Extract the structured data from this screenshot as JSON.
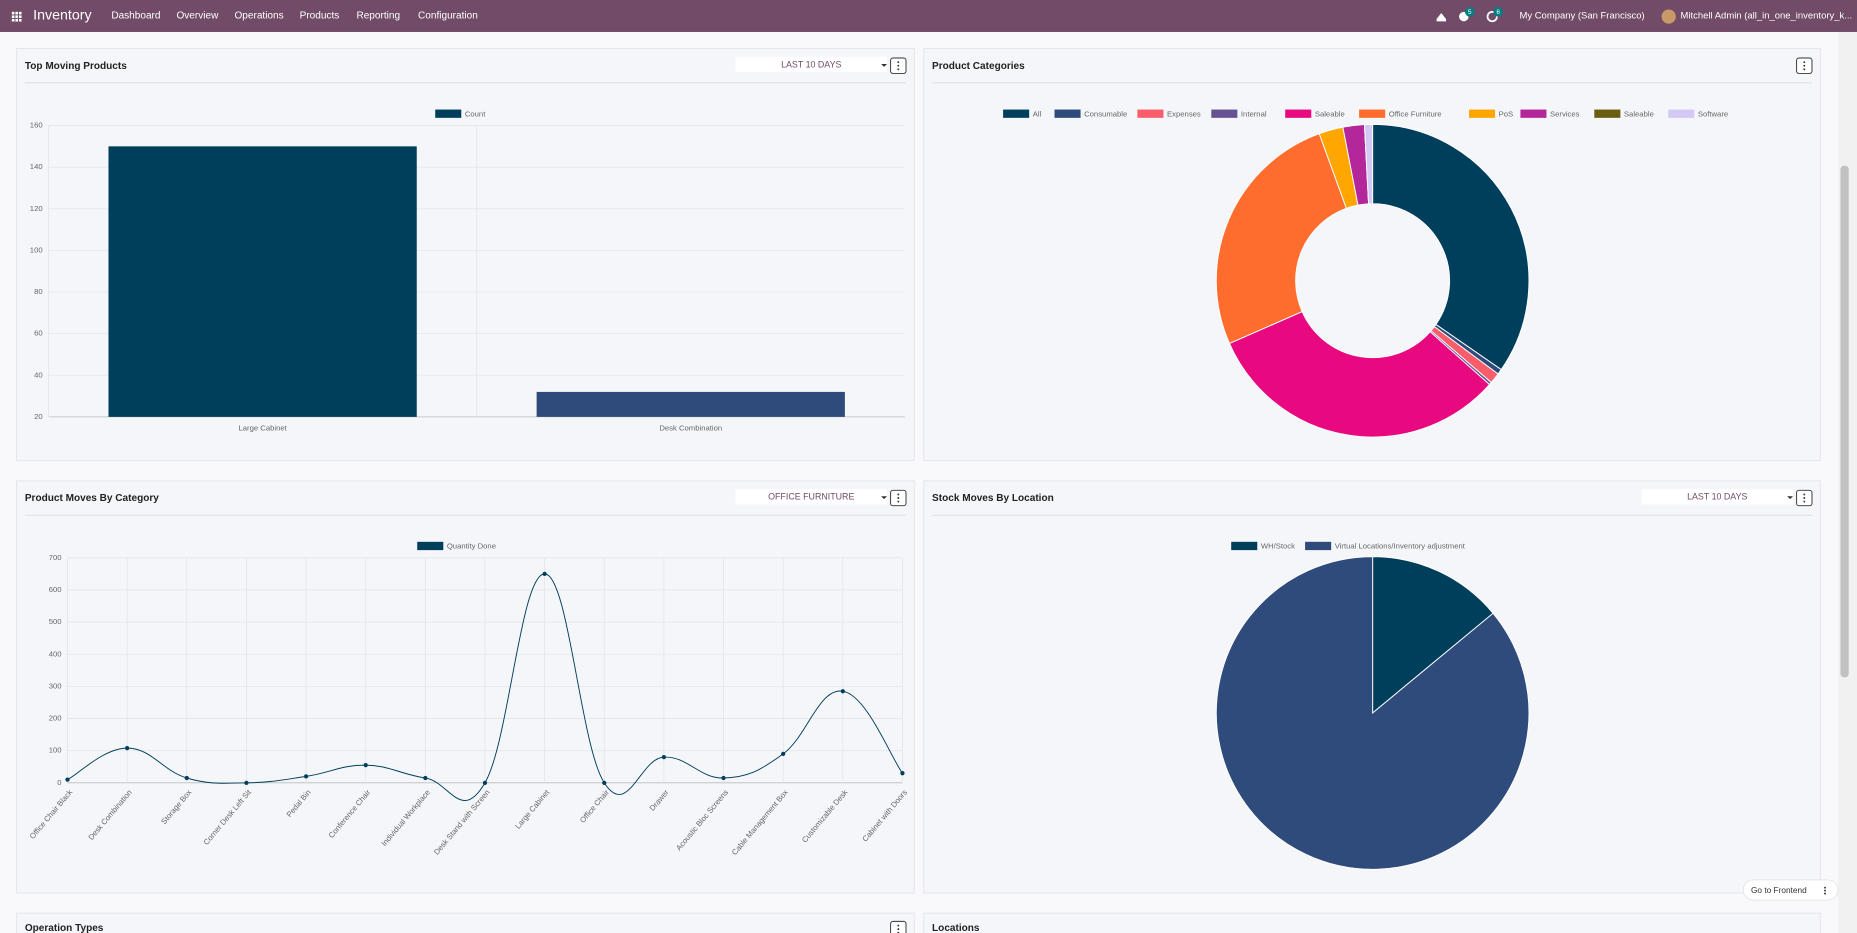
{
  "nav": {
    "app": "Inventory",
    "menu": [
      "Dashboard",
      "Overview",
      "Operations",
      "Products",
      "Reporting",
      "Configuration"
    ],
    "badges": [
      5,
      6
    ],
    "company": "My Company (San Francisco)",
    "user": "Mitchell Admin (all_in_one_inventory_k..."
  },
  "chart_data": [
    {
      "type": "bar",
      "title": "Top Moving Products",
      "filter": "LAST 10 DAYS",
      "categories": [
        "Large Cabinet",
        "Desk Combination"
      ],
      "series": [
        {
          "name": "Count",
          "values": [
            150,
            32
          ],
          "colors": [
            "#003f5c",
            "#2f4b7c"
          ]
        }
      ],
      "ylim": [
        20,
        160
      ],
      "yticks": [
        20,
        40,
        60,
        80,
        100,
        120,
        140,
        160
      ],
      "grid": true
    },
    {
      "type": "doughnut",
      "title": "Product Categories",
      "categories": [
        "All",
        "Consumable",
        "Expenses",
        "Internal",
        "Saleable",
        "Office Furniture",
        "PoS",
        "Services",
        "Saleable",
        "Software"
      ],
      "values": [
        125,
        2,
        4,
        1,
        115,
        94,
        9,
        8,
        0,
        3
      ],
      "colors": [
        "#003f5c",
        "#2f4b7c",
        "#f95d6a",
        "#665191",
        "#e8087f",
        "#ff6d2e",
        "#ffa600",
        "#b3279a",
        "#6b5d10",
        "#d4c8f5"
      ]
    },
    {
      "type": "line",
      "title": "Product Moves By Category",
      "filter": "OFFICE FURNITURE",
      "categories": [
        "Office Chair Black",
        "Desk Combination",
        "Storage Box",
        "Corner Desk Left Sit",
        "Pedal Bin",
        "Conference Chair",
        "Individual Workplace",
        "Desk Stand with Screen",
        "Large Cabinet",
        "Office Chair",
        "Drawer",
        "Acoustic Bloc Screens",
        "Cable Management Box",
        "Customizable Desk",
        "Cabinet with Doors"
      ],
      "series": [
        {
          "name": "Quantity Done",
          "color": "#003f5c",
          "values": [
            10,
            108,
            15,
            0,
            20,
            55,
            15,
            0,
            650,
            0,
            80,
            15,
            90,
            285,
            30
          ]
        }
      ],
      "ylim": [
        0,
        700
      ],
      "yticks": [
        0,
        100,
        200,
        300,
        400,
        500,
        600,
        700
      ],
      "grid": true
    },
    {
      "type": "pie",
      "title": "Stock Moves By Location",
      "filter": "LAST 10 DAYS",
      "categories": [
        "WH/Stock",
        "Virtual Locations/Inventory adjustment"
      ],
      "values": [
        14,
        86
      ],
      "colors": [
        "#003f5c",
        "#2f4b7c"
      ]
    }
  ],
  "more_panels": [
    "Operation Types",
    "Locations"
  ],
  "frontend_button": "Go to Frontend"
}
